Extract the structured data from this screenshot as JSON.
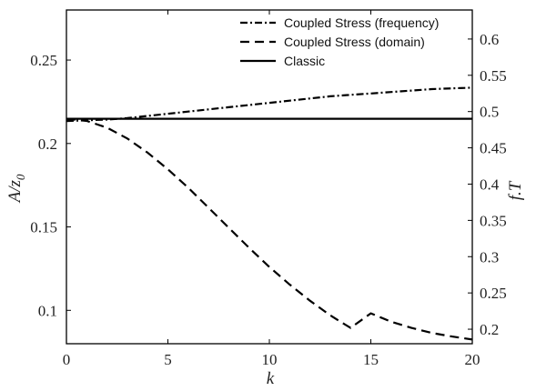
{
  "chart_data": {
    "type": "line",
    "title": "",
    "xlabel": "k",
    "ylabel_left": "A/z",
    "ylabel_left_subscript": "0",
    "ylabel_right": "f.T",
    "xlim": [
      0,
      20
    ],
    "ylim_left": [
      0.08,
      0.28
    ],
    "ylim_right": [
      0.18,
      0.64
    ],
    "x_ticks": [
      0,
      5,
      10,
      15,
      20
    ],
    "y_left_ticks": [
      0.1,
      0.15,
      0.2,
      0.25
    ],
    "y_right_ticks": [
      0.2,
      0.25,
      0.3,
      0.35,
      0.4,
      0.45,
      0.5,
      0.55,
      0.6
    ],
    "grid": false,
    "legend_position": "top-right",
    "series": [
      {
        "name": "Coupled Stress (frequency)",
        "axis": "right",
        "style": "dash-dot",
        "x": [
          0,
          1,
          2,
          3,
          4,
          5,
          6,
          7,
          8,
          9,
          10,
          11,
          12,
          13,
          14,
          15,
          16,
          17,
          18,
          19,
          20
        ],
        "y": [
          0.487,
          0.488,
          0.489,
          0.491,
          0.494,
          0.497,
          0.5,
          0.503,
          0.506,
          0.509,
          0.512,
          0.515,
          0.518,
          0.521,
          0.523,
          0.525,
          0.527,
          0.529,
          0.531,
          0.532,
          0.533
        ]
      },
      {
        "name": "Coupled Stress (domain)",
        "axis": "left",
        "style": "dashed",
        "x": [
          0,
          1,
          2,
          3,
          4,
          5,
          6,
          7,
          8,
          9,
          10,
          11,
          12,
          13,
          14,
          15,
          16,
          17,
          18,
          19,
          20
        ],
        "y": [
          0.2148,
          0.2135,
          0.2095,
          0.203,
          0.1945,
          0.1845,
          0.1735,
          0.1615,
          0.1495,
          0.1375,
          0.126,
          0.1155,
          0.1058,
          0.097,
          0.0895,
          0.0982,
          0.0932,
          0.0895,
          0.0865,
          0.0843,
          0.0825
        ]
      },
      {
        "name": "Classic",
        "axis": "left",
        "style": "solid",
        "x": [
          0,
          20
        ],
        "y": [
          0.2148,
          0.2148
        ]
      }
    ]
  }
}
